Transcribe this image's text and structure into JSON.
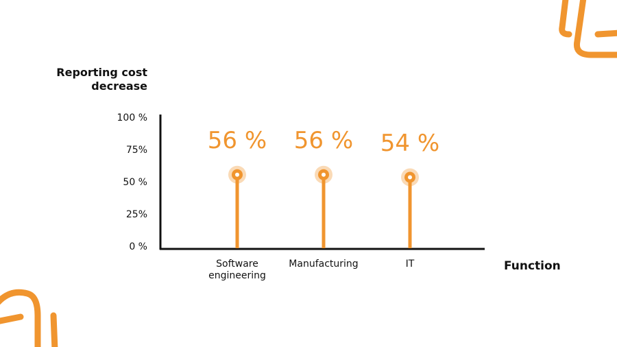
{
  "chart_data": {
    "type": "lollipop",
    "y_label": "Reporting cost decrease",
    "x_label": "Function",
    "categories": [
      "Software engineering",
      "Manufacturing",
      "IT"
    ],
    "values": [
      56,
      56,
      54
    ],
    "value_labels": [
      "56 %",
      "56 %",
      "54 %"
    ],
    "color": "#f0952f",
    "ylim": [
      0,
      100
    ],
    "yticks": [
      {
        "value": 0,
        "label": "0 %"
      },
      {
        "value": 25,
        "label": "25%"
      },
      {
        "value": 50,
        "label": "50 %"
      },
      {
        "value": 75,
        "label": "75%"
      },
      {
        "value": 100,
        "label": "100 %"
      }
    ]
  }
}
